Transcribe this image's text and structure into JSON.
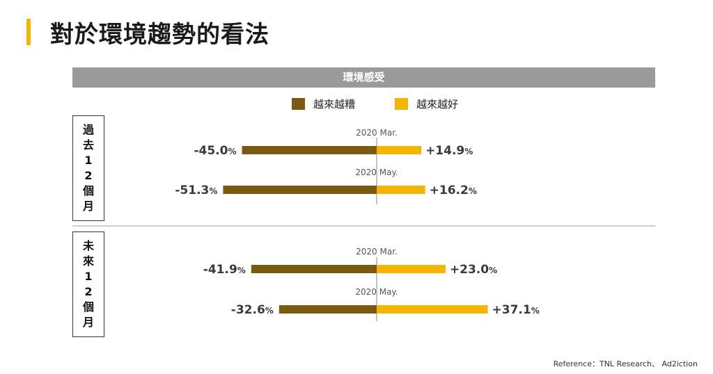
{
  "page_title": "對於環境趨勢的看法",
  "reference": "Reference：TNL Research、 Ad2iction",
  "colors": {
    "accent": "#f5b400",
    "negative": "#7a5a10",
    "positive": "#f5b400",
    "header": "#9a9a9a"
  },
  "chart_data": {
    "type": "bar",
    "orientation": "horizontal-diverging",
    "title": "環境感受",
    "legend": [
      {
        "name": "越來越糟",
        "color": "#7a5a10"
      },
      {
        "name": "越來越好",
        "color": "#f5b400"
      }
    ],
    "legend_position": "top",
    "xlim": [
      -100,
      100
    ],
    "groups": [
      {
        "label": "過去12個月",
        "rows": [
          {
            "period": "2020 Mar.",
            "negative": -45.0,
            "positive": 14.9,
            "negative_label": "-45.0",
            "positive_label": "+14.9"
          },
          {
            "period": "2020 May.",
            "negative": -51.3,
            "positive": 16.2,
            "negative_label": "-51.3",
            "positive_label": "+16.2"
          }
        ]
      },
      {
        "label": "未來12個月",
        "rows": [
          {
            "period": "2020 Mar.",
            "negative": -41.9,
            "positive": 23.0,
            "negative_label": "-41.9",
            "positive_label": "+23.0"
          },
          {
            "period": "2020 May.",
            "negative": -32.6,
            "positive": 37.1,
            "negative_label": "-32.6",
            "positive_label": "+37.1"
          }
        ]
      }
    ],
    "unit": "%"
  }
}
